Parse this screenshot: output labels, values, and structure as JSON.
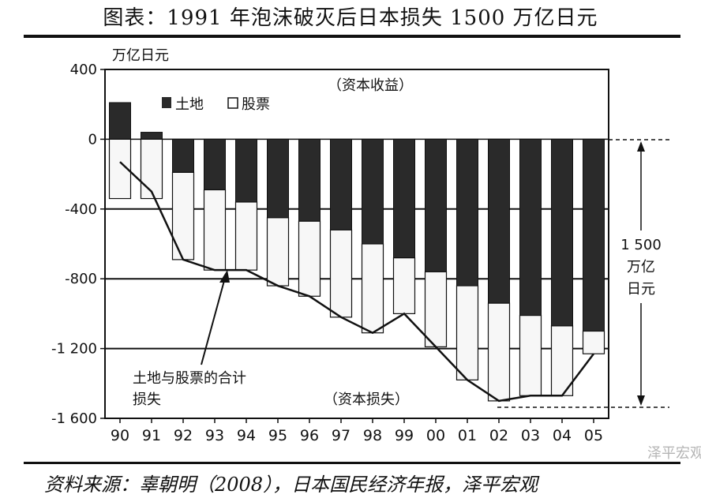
{
  "figure_title": "图表：1991 年泡沫破灭后日本损失 1500 万亿日元",
  "source": "资料来源：辜朝明（2008），日本国民经济年报，泽平宏观",
  "watermark": "泽平宏观",
  "chart_data": {
    "type": "bar",
    "stacked": true,
    "title": "",
    "xlabel": "",
    "ylabel": "万亿日元",
    "ylim": [
      -1600,
      400
    ],
    "yticks": [
      400,
      0,
      -400,
      -800,
      -1200,
      -1600
    ],
    "ytick_labels": [
      "400",
      "0",
      "-400",
      "-800",
      "-1 200",
      "-1 600"
    ],
    "categories": [
      "90",
      "91",
      "92",
      "93",
      "94",
      "95",
      "96",
      "97",
      "98",
      "99",
      "00",
      "01",
      "02",
      "03",
      "04",
      "05"
    ],
    "series": [
      {
        "name": "土地",
        "color": "#2a2a2a",
        "values": [
          210,
          40,
          -190,
          -290,
          -360,
          -450,
          -470,
          -520,
          -600,
          -680,
          -760,
          -840,
          -940,
          -1010,
          -1070,
          -1100
        ]
      },
      {
        "name": "股票",
        "color": "#f7f7f7",
        "values": [
          -340,
          -340,
          -500,
          -460,
          -390,
          -390,
          -430,
          -500,
          -510,
          -320,
          -430,
          -540,
          -560,
          -460,
          -400,
          -130
        ]
      }
    ],
    "total_line": {
      "name": "土地与股票的合计损失",
      "values": [
        -130,
        -300,
        -690,
        -750,
        -750,
        -840,
        -900,
        -1020,
        -1110,
        -1000,
        -1190,
        -1380,
        -1500,
        -1470,
        -1470,
        -1230
      ]
    },
    "legend": {
      "position": "top-left",
      "entries": [
        "土地",
        "股票"
      ]
    },
    "annotations": {
      "gain_label": "（资本收益）",
      "loss_label": "（资本损失）",
      "callout": [
        "土地与股票的合计",
        "损失"
      ],
      "bracket_label": [
        "1 500",
        "万亿",
        "日元"
      ]
    },
    "reference_lines": [
      -400,
      -800,
      -1200
    ]
  }
}
